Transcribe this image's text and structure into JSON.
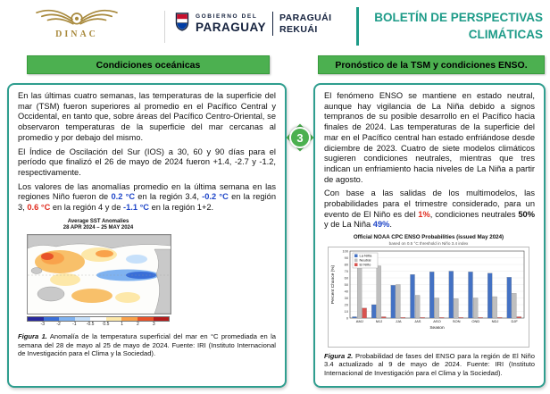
{
  "header": {
    "dinac_label": "DINAC",
    "gov_line1": "GOBIERNO DEL",
    "gov_line2": "PARAGUAY",
    "gov_line3": "PARAGUÁI",
    "gov_line4": "REKUÁI",
    "bulletin_title_line1": "BOLETÍN DE PERSPECTIVAS",
    "bulletin_title_line2": "CLIMÁTICAS"
  },
  "section_left": {
    "title": "Condiciones oceánicas"
  },
  "section_right": {
    "title": "Pronóstico de la TSM y condiciones ENSO."
  },
  "step_badge": "3",
  "left_box": {
    "para1": "En las últimas cuatro semanas, las temperaturas de la superficie del mar (TSM) fueron superiores al promedio en el Pacífico Central y Occidental, en tanto que, sobre áreas del Pacífico Centro-Oriental, se observaron temperaturas de la superficie del mar cercanas al promedio y por debajo del mismo.",
    "para2": "El Índice de Oscilación del Sur (IOS) a 30, 60 y 90 días para el período que finalizó el 26 de mayo de 2024 fueron +1.4, -2.7 y -1.2, respectivamente.",
    "para3_parts": [
      "Los valores de las anomalías promedio en la última semana en las regiones Niño fueron de ",
      "0.2 °C",
      " en la región 3.4, ",
      "-0.2 °C",
      " en la región 3, ",
      "0.6 °C",
      " en la región 4 y de ",
      "-1.1 °C",
      " en la región 1+2."
    ],
    "figure1": {
      "title_line1": "Average SST Anomalies",
      "title_line2": "28 APR 2024 – 25 MAY 2024",
      "caption_bold": "Figura 1.",
      "caption": " Anomalía de la temperatura superficial del mar en °C promediada en la semana del 28 de mayo al 25 de mayo de 2024. Fuente: IRI (Instituto Internacional de Investigación para el Clima y la Sociedad)."
    }
  },
  "right_box": {
    "para1": "El fenómeno ENSO se mantiene en estado neutral, aunque hay vigilancia de La Niña debido a signos tempranos de su posible desarrollo en el Pacífico hacia finales de 2024. Las temperaturas de la superficie del mar en el Pacífico central han estado enfriándose desde diciembre de 2023. Cuatro de siete modelos climáticos sugieren condiciones neutrales, mientras que tres indican un enfriamiento hacia niveles de La Niña a partir de agosto.",
    "para2_parts": [
      "Con base a las salidas de los multimodelos, las probabilidades para el trimestre considerado, para un evento de El Niño es del ",
      "1%",
      ", condiciones neutrales ",
      "50%",
      " y de La Niña ",
      "49%",
      "."
    ],
    "figure2": {
      "caption_bold": "Figura 2.",
      "caption": " Probabilidad de fases del ENSO para la región de El Niño 3.4 actualizado al 9 de mayo de 2024. Fuente: IRI (Instituto Internacional de Investigación para el Clima y la Sociedad)."
    }
  },
  "colors": {
    "teal_accent": "#1d9b88",
    "box_border": "#2f9e8f",
    "section_green": "#4cb050",
    "value_blue": "#1f46c8",
    "value_red": "#e02a1d"
  },
  "chart_data": [
    {
      "figure": "Figura 1",
      "type": "heatmap",
      "title": "Average SST Anomalies",
      "subtitle": "28 APR 2024 – 25 MAY 2024",
      "units": "°C",
      "colorbar_ticks": [
        -3,
        -2,
        -1,
        -0.5,
        0.5,
        1,
        2,
        3
      ],
      "colorbar_colors": [
        "#27279b",
        "#3a6fd8",
        "#7fb2f0",
        "#c6e0fa",
        "#ffffff",
        "#fde8a9",
        "#f9a24b",
        "#e8532a",
        "#b31b1b"
      ],
      "description": "Anomalías cálidas de TSM en el Pacífico Central y Occidental; anomalías frías en el Pacífico ecuatorial oriental"
    },
    {
      "figure": "Figura 2",
      "type": "bar",
      "title": "Official NOAA CPC ENSO Probabilities (issued May 2024)",
      "subtitle": "based on 0.5 °C threshold in Niño 3.4 index",
      "xlabel": "Season",
      "ylabel": "Percent Chance (%)",
      "ylim": [
        0,
        100
      ],
      "categories": [
        "AMJ",
        "MJJ",
        "JJA",
        "JAS",
        "ASO",
        "SON",
        "OND",
        "NDJ",
        "DJF"
      ],
      "series": [
        {
          "name": "La Niña",
          "color": "#4472c4",
          "values": [
            2,
            20,
            49,
            65,
            69,
            70,
            69,
            67,
            61
          ]
        },
        {
          "name": "Neutral",
          "color": "#bfbfbf",
          "values": [
            83,
            78,
            50,
            34,
            30,
            29,
            30,
            32,
            37
          ]
        },
        {
          "name": "El Niño",
          "color": "#d9534f",
          "values": [
            15,
            2,
            1,
            1,
            1,
            1,
            1,
            1,
            2
          ]
        }
      ],
      "legend_position": "top-left"
    }
  ]
}
